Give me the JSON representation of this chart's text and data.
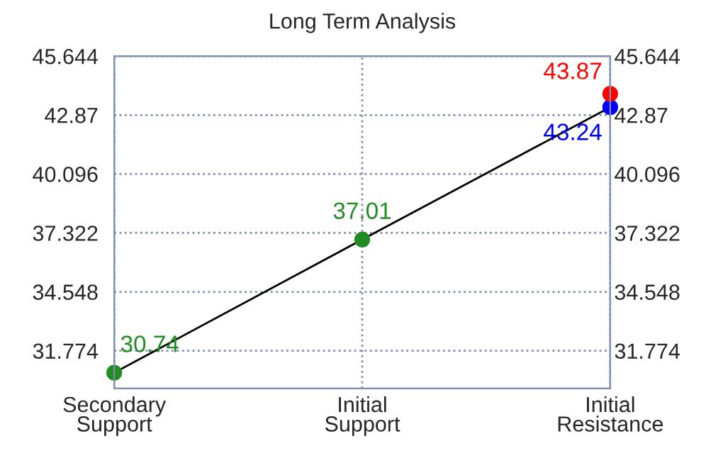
{
  "chart_data": {
    "type": "line",
    "title": "Long Term Analysis",
    "categories": [
      "Secondary\nSupport",
      "Initial\nSupport",
      "Initial\nResistance"
    ],
    "ylim": [
      30.0,
      45.644
    ],
    "yticks": [
      31.774,
      34.548,
      37.322,
      40.096,
      42.87,
      45.644
    ],
    "y2lim": [
      30.0,
      45.644
    ],
    "y2ticks": [
      31.774,
      34.548,
      37.322,
      40.096,
      42.87,
      45.644
    ],
    "series": [
      {
        "color": "#000000",
        "values": [
          30.74,
          37.01,
          43.24
        ],
        "colors": [
          "#228b22",
          "#228b22",
          "#0000ff"
        ]
      },
      {
        "type": "scatter",
        "color": "#ff0000",
        "values": [
          null,
          null,
          43.87
        ]
      }
    ],
    "data_labels": true,
    "grid": true,
    "marker": "circle",
    "line_style": "solid"
  }
}
